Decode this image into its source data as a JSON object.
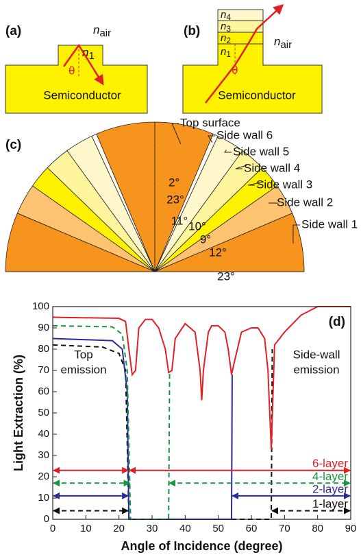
{
  "panel_a": {
    "label": "(a)",
    "outside": {
      "symbol": "n",
      "subscript": "air"
    },
    "layer": {
      "symbol": "n",
      "subscript": "1"
    },
    "angle_symbol": "θ",
    "body": "Semiconductor"
  },
  "panel_b": {
    "label": "(b)",
    "outside": {
      "symbol": "n",
      "subscript": "air"
    },
    "layers": [
      {
        "symbol": "n",
        "subscript": "4"
      },
      {
        "symbol": "n",
        "subscript": "3"
      },
      {
        "symbol": "n",
        "subscript": "2"
      },
      {
        "symbol": "n",
        "subscript": "1"
      }
    ],
    "angle_symbol": "θ",
    "body": "Semiconductor"
  },
  "panel_c": {
    "label": "(c)",
    "sectors": [
      {
        "name": "Top surface",
        "angle": 23,
        "angle_label": "23°",
        "color": "#f7941d"
      },
      {
        "name": "Side wall 6",
        "angle": 2,
        "angle_label": "2°",
        "color": "#fffdf0"
      },
      {
        "name": "Side wall 5",
        "angle": 11,
        "angle_label": "11°",
        "color": "#fff8cc"
      },
      {
        "name": "Side wall 4",
        "angle": 10,
        "angle_label": "10°",
        "color": "#fff59d"
      },
      {
        "name": "Side wall 3",
        "angle": 9,
        "angle_label": "9°",
        "color": "#fff200"
      },
      {
        "name": "Side wall 2",
        "angle": 12,
        "angle_label": "12°",
        "color": "#fdc371"
      },
      {
        "name": "Side wall 1",
        "angle": 23,
        "angle_label": "23°",
        "color": "#f7941d"
      }
    ]
  },
  "chart_data": {
    "type": "line",
    "panel_label": "(d)",
    "x_label": "Angle of Incidence (degree)",
    "y_label": "Light Extraction (%)",
    "xlim": [
      0,
      90
    ],
    "ylim": [
      0,
      100
    ],
    "xticks": [
      0,
      10,
      20,
      30,
      40,
      50,
      60,
      70,
      80,
      90
    ],
    "yticks": [
      0,
      10,
      20,
      30,
      40,
      50,
      60,
      70,
      80,
      90,
      100
    ],
    "annotations": [
      {
        "lines": [
          "Top",
          "emission"
        ]
      },
      {
        "lines": [
          "Side-wall",
          "emission"
        ]
      }
    ],
    "series": [
      {
        "name": "6-layer",
        "color": "#e31e24",
        "dashed": false,
        "arrow_level": 23,
        "x": [
          0,
          20,
          22,
          23,
          24,
          25,
          26,
          28,
          30,
          32,
          34,
          35,
          36,
          37,
          40,
          43,
          44.5,
          45,
          45.5,
          47,
          48,
          50,
          52,
          53,
          54,
          55,
          57,
          60,
          62,
          64,
          65,
          66,
          67,
          70,
          75,
          80,
          90
        ],
        "values": [
          95,
          94.5,
          93,
          80,
          68,
          70,
          90,
          94,
          94,
          90,
          80,
          69,
          70,
          85,
          92,
          88,
          70,
          56,
          70,
          88,
          91,
          91,
          88,
          80,
          68,
          75,
          88,
          90,
          90,
          85,
          70,
          33,
          82,
          88,
          96,
          100,
          100
        ],
        "ranges": [
          [
            0,
            23
          ],
          [
            23,
            90
          ]
        ]
      },
      {
        "name": "4-layer",
        "color": "#1a9641",
        "dashed": true,
        "arrow_level": 17,
        "x": [
          0,
          18,
          21,
          22.5,
          23.5,
          35,
          35.3
        ],
        "values": [
          91,
          90.5,
          87,
          70,
          0,
          0,
          70
        ],
        "ranges": [
          [
            0,
            23.5
          ],
          [
            35,
            90
          ]
        ]
      },
      {
        "name": "2-layer",
        "color": "#2b2b9a",
        "dashed": false,
        "arrow_level": 11,
        "x": [
          0,
          18,
          21,
          22.5,
          23,
          54,
          54.2
        ],
        "values": [
          85,
          84,
          80,
          60,
          0,
          0,
          68
        ],
        "ranges": [
          [
            0,
            23
          ],
          [
            54,
            90
          ]
        ]
      },
      {
        "name": "1-layer",
        "color": "#111111",
        "dashed": true,
        "arrow_level": 4,
        "x": [
          0,
          15,
          20,
          22,
          23,
          66,
          66.3
        ],
        "values": [
          82,
          81,
          78,
          70,
          0,
          0,
          80
        ],
        "ranges": [
          [
            0,
            23
          ],
          [
            66,
            90
          ]
        ]
      }
    ]
  }
}
